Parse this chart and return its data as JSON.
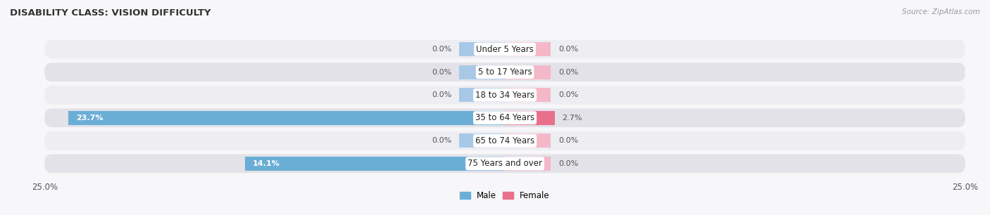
{
  "title": "DISABILITY CLASS: VISION DIFFICULTY",
  "source_text": "Source: ZipAtlas.com",
  "categories": [
    "Under 5 Years",
    "5 to 17 Years",
    "18 to 34 Years",
    "35 to 64 Years",
    "65 to 74 Years",
    "75 Years and over"
  ],
  "male_values": [
    0.0,
    0.0,
    0.0,
    23.7,
    0.0,
    14.1
  ],
  "female_values": [
    0.0,
    0.0,
    0.0,
    2.7,
    0.0,
    0.0
  ],
  "male_color_light": "#a8c8e8",
  "male_color_strong": "#6aaed6",
  "female_color_light": "#f4b8c8",
  "female_color_strong": "#e8708a",
  "row_bg_light": "#ededf2",
  "row_bg_dark": "#e2e2e8",
  "xlim": 25.0,
  "title_fontsize": 9.5,
  "label_fontsize": 8.5,
  "value_fontsize": 8.0,
  "tick_fontsize": 8.5,
  "legend_male": "Male",
  "legend_female": "Female",
  "background_color": "#f7f7fa",
  "stub_size": 2.5
}
